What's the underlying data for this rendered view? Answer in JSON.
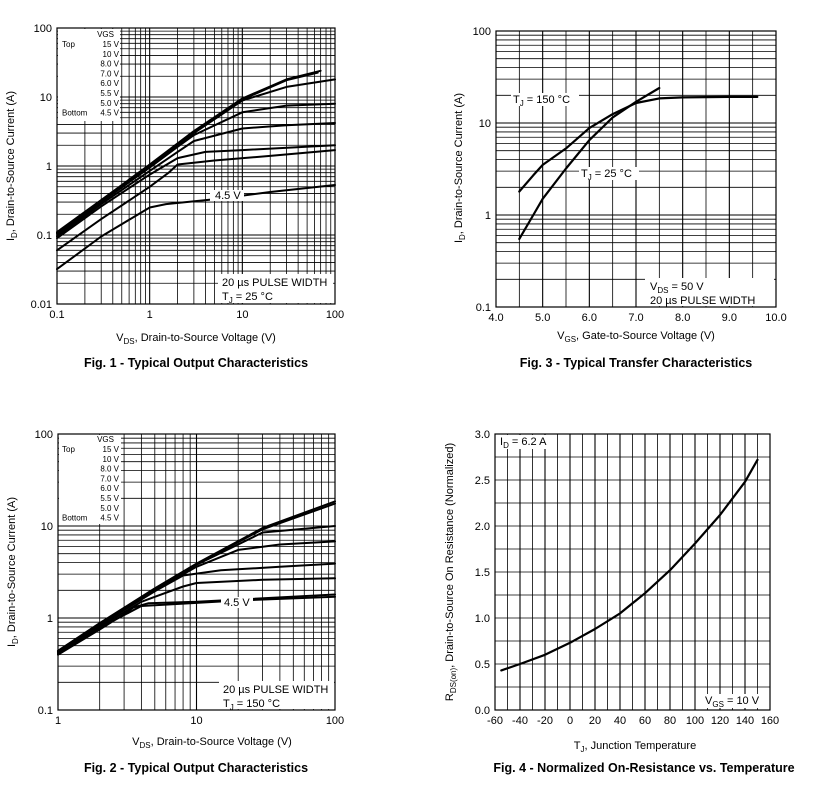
{
  "chart_data": [
    {
      "id": "fig1",
      "type": "line",
      "title": "Fig. 1 - Typical Output Characteristics",
      "xscale": "log",
      "yscale": "log",
      "xlim": [
        0.1,
        100
      ],
      "ylim": [
        0.01,
        100
      ],
      "xticks": [
        0.1,
        1,
        10,
        100
      ],
      "xtick_labels": [
        "0.1",
        "1",
        "10",
        "100"
      ],
      "yticks": [
        0.01,
        0.1,
        1,
        10,
        100
      ],
      "ytick_labels": [
        "0.01",
        "0.1",
        "1",
        "10",
        "100"
      ],
      "xlabel_main": "V",
      "xlabel_sub": "DS",
      "xlabel_rest": ", Drain-to-Source Voltage (V)",
      "ylabel_main": "I",
      "ylabel_sub": "D",
      "ylabel_rest": ", Drain-to-Source Current (A)",
      "legend": {
        "header": "VGS",
        "top_label": "Top",
        "bottom_label": "Bottom",
        "entries": [
          "15 V",
          "10 V",
          "8.0 V",
          "7.0 V",
          "6.0 V",
          "5.5 V",
          "5.0 V",
          "4.5 V"
        ]
      },
      "annotations": {
        "curve_label": "4.5 V",
        "pulse": "20 µs PULSE WIDTH",
        "tj_main": "T",
        "tj_sub": "J",
        "tj_rest": " = 25 °C"
      },
      "series": [
        {
          "name": "15 V",
          "points": [
            [
              0.1,
              0.11
            ],
            [
              0.3,
              0.32
            ],
            [
              1,
              1.05
            ],
            [
              3,
              3.2
            ],
            [
              10,
              9.5
            ],
            [
              30,
              18
            ],
            [
              70,
              24
            ]
          ]
        },
        {
          "name": "10 V",
          "points": [
            [
              0.1,
              0.108
            ],
            [
              0.3,
              0.315
            ],
            [
              1,
              1.03
            ],
            [
              3,
              3.1
            ],
            [
              10,
              9.2
            ],
            [
              30,
              17.5
            ],
            [
              65,
              22.5
            ]
          ]
        },
        {
          "name": "8.0 V",
          "points": [
            [
              0.1,
              0.105
            ],
            [
              0.3,
              0.31
            ],
            [
              1,
              1.0
            ],
            [
              3,
              3.0
            ],
            [
              10,
              8.9
            ],
            [
              30,
              14
            ],
            [
              100,
              18
            ]
          ]
        },
        {
          "name": "7.0 V",
          "points": [
            [
              0.1,
              0.1
            ],
            [
              0.3,
              0.3
            ],
            [
              1,
              0.95
            ],
            [
              2,
              1.9
            ],
            [
              3,
              2.8
            ],
            [
              10,
              6.0
            ],
            [
              30,
              7.5
            ],
            [
              100,
              8.0
            ]
          ]
        },
        {
          "name": "6.0 V",
          "points": [
            [
              0.1,
              0.095
            ],
            [
              0.3,
              0.28
            ],
            [
              1,
              0.85
            ],
            [
              2,
              1.6
            ],
            [
              3,
              2.3
            ],
            [
              10,
              3.5
            ],
            [
              30,
              3.9
            ],
            [
              100,
              4.2
            ]
          ]
        },
        {
          "name": "5.5 V",
          "points": [
            [
              0.1,
              0.09
            ],
            [
              0.3,
              0.26
            ],
            [
              1,
              0.75
            ],
            [
              2,
              1.3
            ],
            [
              4,
              1.6
            ],
            [
              10,
              1.7
            ],
            [
              100,
              2.0
            ]
          ]
        },
        {
          "name": "5.0 V",
          "points": [
            [
              0.1,
              0.06
            ],
            [
              0.3,
              0.17
            ],
            [
              1,
              0.5
            ],
            [
              1.6,
              0.8
            ],
            [
              2,
              1.05
            ],
            [
              5,
              1.2
            ],
            [
              20,
              1.4
            ],
            [
              100,
              1.7
            ]
          ]
        },
        {
          "name": "4.5 V",
          "points": [
            [
              0.1,
              0.032
            ],
            [
              0.3,
              0.095
            ],
            [
              1,
              0.25
            ],
            [
              1.5,
              0.28
            ],
            [
              5,
              0.33
            ],
            [
              20,
              0.42
            ],
            [
              100,
              0.53
            ]
          ]
        }
      ]
    },
    {
      "id": "fig2",
      "type": "line",
      "title": "Fig. 2 - Typical Output Characteristics",
      "xscale": "log",
      "yscale": "log",
      "xlim": [
        1,
        100
      ],
      "ylim": [
        0.1,
        100
      ],
      "xticks": [
        1,
        10,
        100
      ],
      "xtick_labels": [
        "1",
        "10",
        "100"
      ],
      "yticks": [
        0.1,
        1,
        10,
        100
      ],
      "ytick_labels": [
        "0.1",
        "1",
        "10",
        "100"
      ],
      "xlabel_main": "V",
      "xlabel_sub": "DS",
      "xlabel_rest": ", Drain-to-Source Voltage (V)",
      "ylabel_main": "I",
      "ylabel_sub": "D",
      "ylabel_rest": ", Drain-to-Source Current (A)",
      "legend": {
        "header": "VGS",
        "top_label": "Top",
        "bottom_label": "Bottom",
        "entries": [
          "15 V",
          "10 V",
          "8.0 V",
          "7.0 V",
          "6.0 V",
          "5.5 V",
          "5.0 V",
          "4.5 V"
        ]
      },
      "annotations": {
        "curve_label": "4.5 V",
        "pulse": "20 µs PULSE WIDTH",
        "tj_main": "T",
        "tj_sub": "J",
        "tj_rest": " = 150 °C"
      },
      "series": [
        {
          "name": "15 V",
          "points": [
            [
              1,
              0.44
            ],
            [
              2,
              0.88
            ],
            [
              5,
              2.1
            ],
            [
              10,
              3.9
            ],
            [
              30,
              9.5
            ],
            [
              100,
              18.5
            ]
          ]
        },
        {
          "name": "10 V",
          "points": [
            [
              1,
              0.44
            ],
            [
              2,
              0.87
            ],
            [
              5,
              2.08
            ],
            [
              10,
              3.85
            ],
            [
              30,
              9.2
            ],
            [
              100,
              17.5
            ]
          ]
        },
        {
          "name": "8.0 V",
          "points": [
            [
              1,
              0.43
            ],
            [
              2,
              0.86
            ],
            [
              5,
              2.05
            ],
            [
              10,
              3.8
            ],
            [
              30,
              8.5
            ],
            [
              100,
              10
            ]
          ]
        },
        {
          "name": "7.0 V",
          "points": [
            [
              1,
              0.43
            ],
            [
              2,
              0.85
            ],
            [
              5,
              2.0
            ],
            [
              10,
              3.6
            ],
            [
              20,
              5.5
            ],
            [
              40,
              6.3
            ],
            [
              100,
              6.8
            ]
          ]
        },
        {
          "name": "6.0 V",
          "points": [
            [
              1,
              0.42
            ],
            [
              2,
              0.84
            ],
            [
              5,
              1.95
            ],
            [
              8,
              2.9
            ],
            [
              15,
              3.3
            ],
            [
              40,
              3.6
            ],
            [
              100,
              3.9
            ]
          ]
        },
        {
          "name": "5.5 V",
          "points": [
            [
              1,
              0.41
            ],
            [
              2,
              0.8
            ],
            [
              4,
              1.5
            ],
            [
              5,
              1.7
            ],
            [
              8,
              2.2
            ],
            [
              10,
              2.4
            ],
            [
              30,
              2.6
            ],
            [
              100,
              2.7
            ]
          ]
        },
        {
          "name": "5.0 V",
          "points": [
            [
              1,
              0.4
            ],
            [
              2,
              0.78
            ],
            [
              4,
              1.35
            ],
            [
              6,
              1.4
            ],
            [
              20,
              1.55
            ],
            [
              100,
              1.7
            ]
          ]
        },
        {
          "name": "4.5 V",
          "points": [
            [
              1,
              0.4
            ],
            [
              2,
              0.75
            ],
            [
              3,
              1.1
            ],
            [
              3.5,
              1.3
            ],
            [
              4.5,
              1.45
            ],
            [
              10,
              1.5
            ],
            [
              100,
              1.8
            ]
          ]
        }
      ]
    },
    {
      "id": "fig3",
      "type": "line",
      "title": "Fig. 3 - Typical Transfer Characteristics",
      "xscale": "linear",
      "yscale": "log",
      "xlim": [
        4.0,
        10.0
      ],
      "ylim": [
        0.1,
        100
      ],
      "xticks": [
        4,
        5,
        6,
        7,
        8,
        9,
        10
      ],
      "xtick_labels": [
        "4.0",
        "5.0",
        "6.0",
        "7.0",
        "8.0",
        "9.0",
        "10.0"
      ],
      "yticks": [
        0.1,
        1,
        10,
        100
      ],
      "ytick_labels": [
        "0.1",
        "1",
        "10",
        "100"
      ],
      "xlabel_main": "V",
      "xlabel_sub": "GS",
      "xlabel_rest": ", Gate-to-Source Voltage (V)",
      "ylabel_main": "I",
      "ylabel_sub": "D",
      "ylabel_rest": ", Drain-to-Source Current (A)",
      "annotations": {
        "t150_main": "T",
        "t150_sub": "J",
        "t150_rest": " = 150 °C",
        "t25_main": "T",
        "t25_sub": "J",
        "t25_rest": " = 25 °C",
        "vds_main": "V",
        "vds_sub": "DS",
        "vds_rest": " = 50 V",
        "pulse": "20 µs PULSE WIDTH"
      },
      "series": [
        {
          "name": "TJ = 150 °C",
          "points": [
            [
              4.5,
              1.8
            ],
            [
              4.8,
              2.7
            ],
            [
              5.0,
              3.5
            ],
            [
              5.5,
              5.3
            ],
            [
              6.0,
              8.8
            ],
            [
              6.5,
              12.5
            ],
            [
              7.0,
              16.5
            ],
            [
              7.5,
              18.5
            ],
            [
              8.0,
              19
            ],
            [
              9.0,
              19.2
            ],
            [
              9.6,
              19.2
            ]
          ]
        },
        {
          "name": "TJ = 25 °C",
          "points": [
            [
              4.5,
              0.55
            ],
            [
              4.8,
              1.0
            ],
            [
              5.0,
              1.5
            ],
            [
              5.5,
              3.2
            ],
            [
              6.0,
              6.5
            ],
            [
              6.5,
              11.5
            ],
            [
              7.0,
              17
            ],
            [
              7.5,
              24
            ]
          ]
        }
      ]
    },
    {
      "id": "fig4",
      "type": "line",
      "title": "Fig. 4 - Normalized On-Resistance vs. Temperature",
      "xscale": "linear",
      "yscale": "linear",
      "xlim": [
        -60,
        160
      ],
      "ylim": [
        0.0,
        3.0
      ],
      "xticks": [
        -60,
        -40,
        -20,
        0,
        20,
        40,
        60,
        80,
        100,
        120,
        140,
        160
      ],
      "xtick_labels": [
        "-60",
        "-40",
        "-20",
        "0",
        "20",
        "40",
        "60",
        "80",
        "100",
        "120",
        "140",
        "160"
      ],
      "yticks": [
        0,
        0.5,
        1,
        1.5,
        2,
        2.5,
        3
      ],
      "ytick_labels": [
        "0.0",
        "0.5",
        "1.0",
        "1.5",
        "2.0",
        "2.5",
        "3.0"
      ],
      "xlabel_main": "T",
      "xlabel_sub": "J",
      "xlabel_rest": ", Junction Temperature",
      "ylabel_main": "R",
      "ylabel_sub": "DS(on)",
      "ylabel_rest": ", Drain-to-Source On Resistance (Normalized)",
      "annotations": {
        "id_main": "I",
        "id_sub": "D",
        "id_rest": " = 6.2 A",
        "vgs_main": "V",
        "vgs_sub": "GS",
        "vgs_rest": " = 10 V"
      },
      "series": [
        {
          "name": "RDS(on)",
          "points": [
            [
              -55,
              0.43
            ],
            [
              -40,
              0.5
            ],
            [
              -20,
              0.6
            ],
            [
              0,
              0.73
            ],
            [
              20,
              0.88
            ],
            [
              40,
              1.05
            ],
            [
              60,
              1.27
            ],
            [
              80,
              1.52
            ],
            [
              100,
              1.81
            ],
            [
              120,
              2.12
            ],
            [
              140,
              2.48
            ],
            [
              150,
              2.72
            ]
          ]
        }
      ]
    }
  ]
}
